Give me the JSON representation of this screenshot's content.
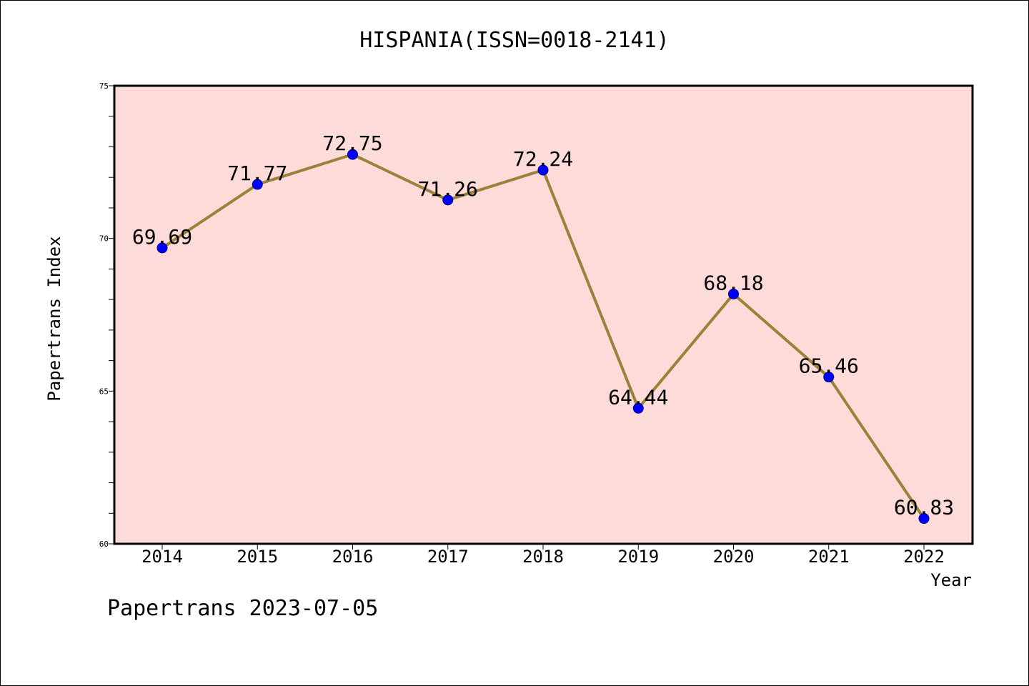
{
  "title": "HISPANIA(ISSN=0018-2141)",
  "footer": "Papertrans 2023-07-05",
  "colors": {
    "plot_background": "#fddbd8",
    "line": "#9a8239",
    "marker": "#0000ff",
    "marker_edge": "#00008b",
    "axis": "#000000",
    "text": "#000000"
  },
  "chart_data": {
    "type": "line",
    "title": "HISPANIA(ISSN=0018-2141)",
    "xlabel": "Year",
    "ylabel": "Papertrans Index",
    "categories": [
      "2014",
      "2015",
      "2016",
      "2017",
      "2018",
      "2019",
      "2020",
      "2021",
      "2022"
    ],
    "series": [
      {
        "values": [
          69.69,
          71.77,
          72.75,
          71.26,
          72.24,
          64.44,
          68.18,
          65.46,
          60.83
        ],
        "labels": [
          "69.69",
          "71.77",
          "72.75",
          "71.26",
          "72.24",
          "64.44",
          "68.18",
          "65.46",
          "60.83"
        ]
      }
    ],
    "ylim": [
      60,
      75
    ],
    "yticks": [
      60,
      65,
      70,
      75
    ],
    "ytick_labels": [
      "60",
      "65",
      "70",
      "75"
    ],
    "y_minor_step": 1,
    "grid": false,
    "legend": "none"
  }
}
